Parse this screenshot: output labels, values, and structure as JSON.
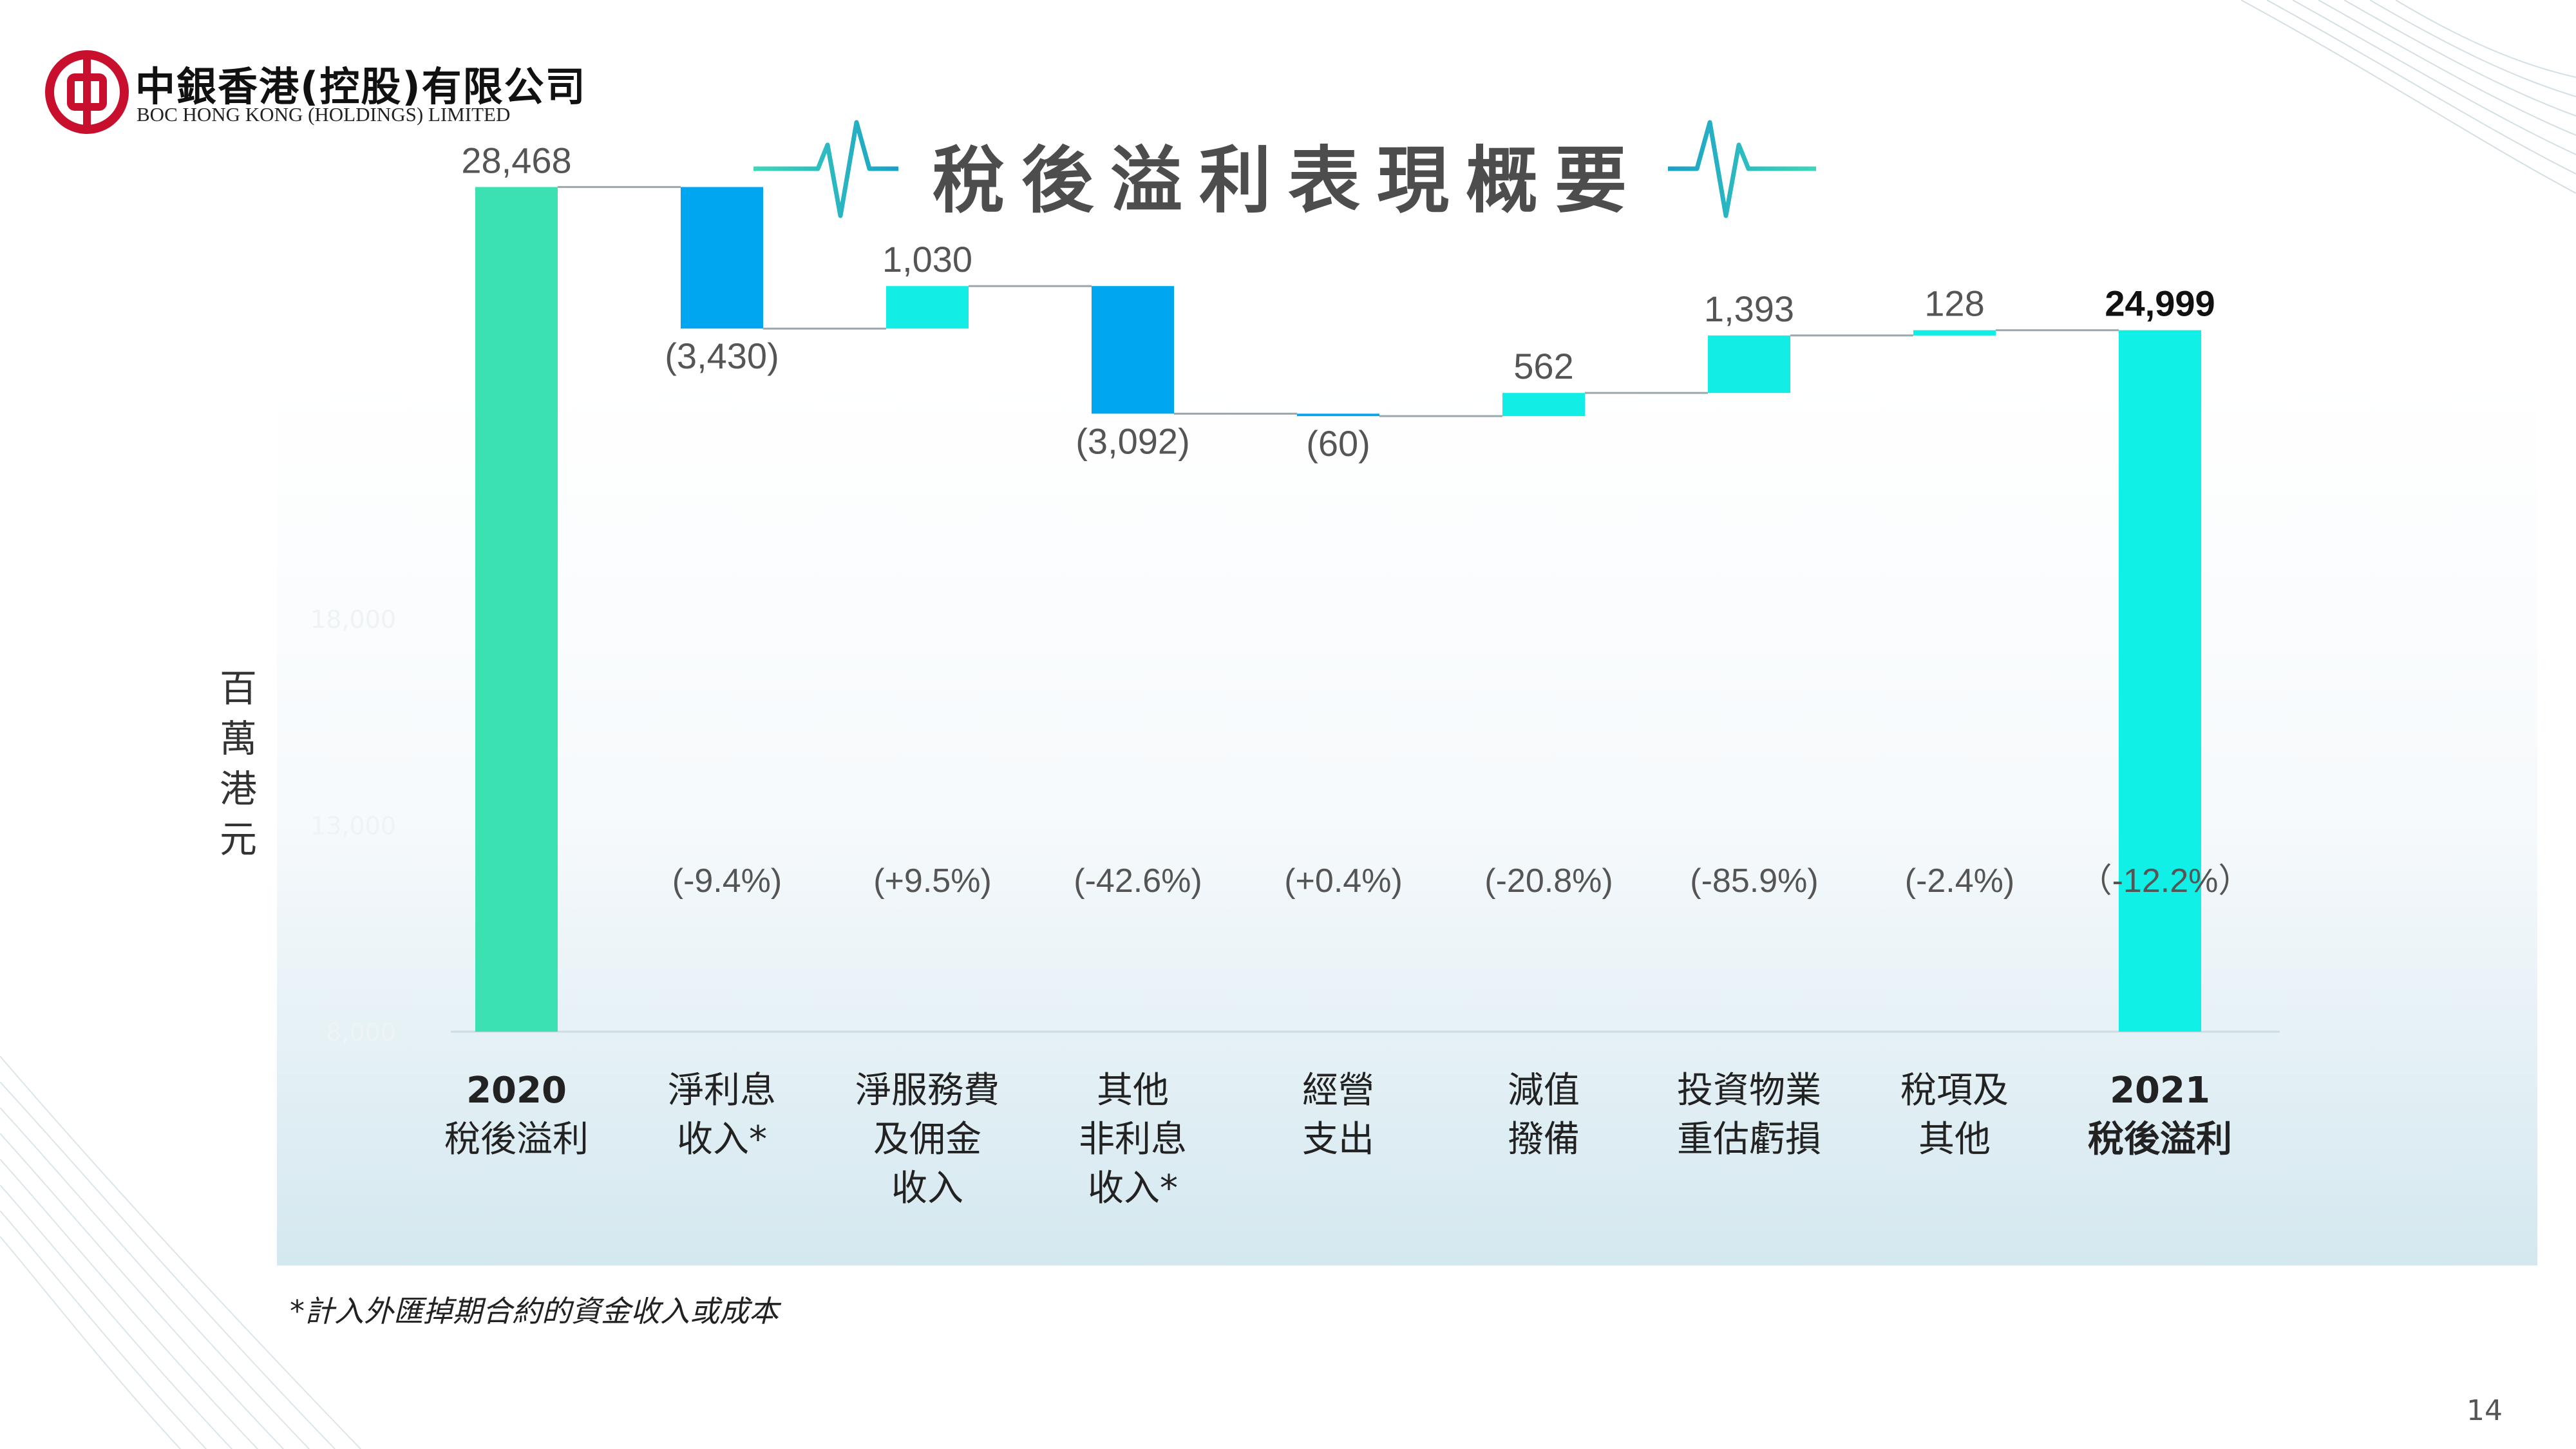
{
  "header": {
    "logo_zh": "中銀香港(控股)有限公司",
    "logo_en": "BOC HONG KONG (HOLDINGS) LIMITED",
    "logo_icon": "boc-logo-icon",
    "title": "稅後溢利表現概要"
  },
  "y_unit": "百萬港元",
  "footnote": "*計入外匯掉期合約的資金收入或成本",
  "page_number": "14",
  "colors": {
    "base_bar": "#3be1b1",
    "final_bar": "#10f0e6",
    "increase": "#12ede6",
    "decrease": "#00a6f0",
    "connector": "#9aa7ad",
    "logo_red": "#c8102e"
  },
  "chart_data": {
    "type": "bar",
    "subtype": "waterfall",
    "ylim": [
      8000,
      33000
    ],
    "y_ticks": [
      "8,000",
      "13,000",
      "18,000"
    ],
    "categories": [
      "2020\n稅後溢利",
      "淨利息\n收入*",
      "淨服務費\n及佣金\n收入",
      "其他\n非利息\n收入*",
      "經營\n支出",
      "減值\n撥備",
      "投資物業\n重估虧損",
      "稅項及\n其他",
      "2021\n稅後溢利"
    ],
    "kinds": [
      "total",
      "delta",
      "delta",
      "delta",
      "delta",
      "delta",
      "delta",
      "delta",
      "total"
    ],
    "values": [
      28468,
      -3430,
      1030,
      -3092,
      -60,
      562,
      1393,
      128,
      24999
    ],
    "value_labels": [
      "28,468",
      "(3,430)",
      "1,030",
      "(3,092)",
      "(60)",
      "562",
      "1,393",
      "128",
      "24,999"
    ],
    "pct_labels": [
      "",
      "(-9.4%)",
      "(+9.5%)",
      "(-42.6%)",
      "(+0.4%)",
      "(-20.8%)",
      "(-85.9%)",
      "(-2.4%)",
      "（-12.2%）"
    ],
    "bold_categories": [
      true,
      false,
      false,
      false,
      false,
      false,
      false,
      false,
      true
    ]
  }
}
